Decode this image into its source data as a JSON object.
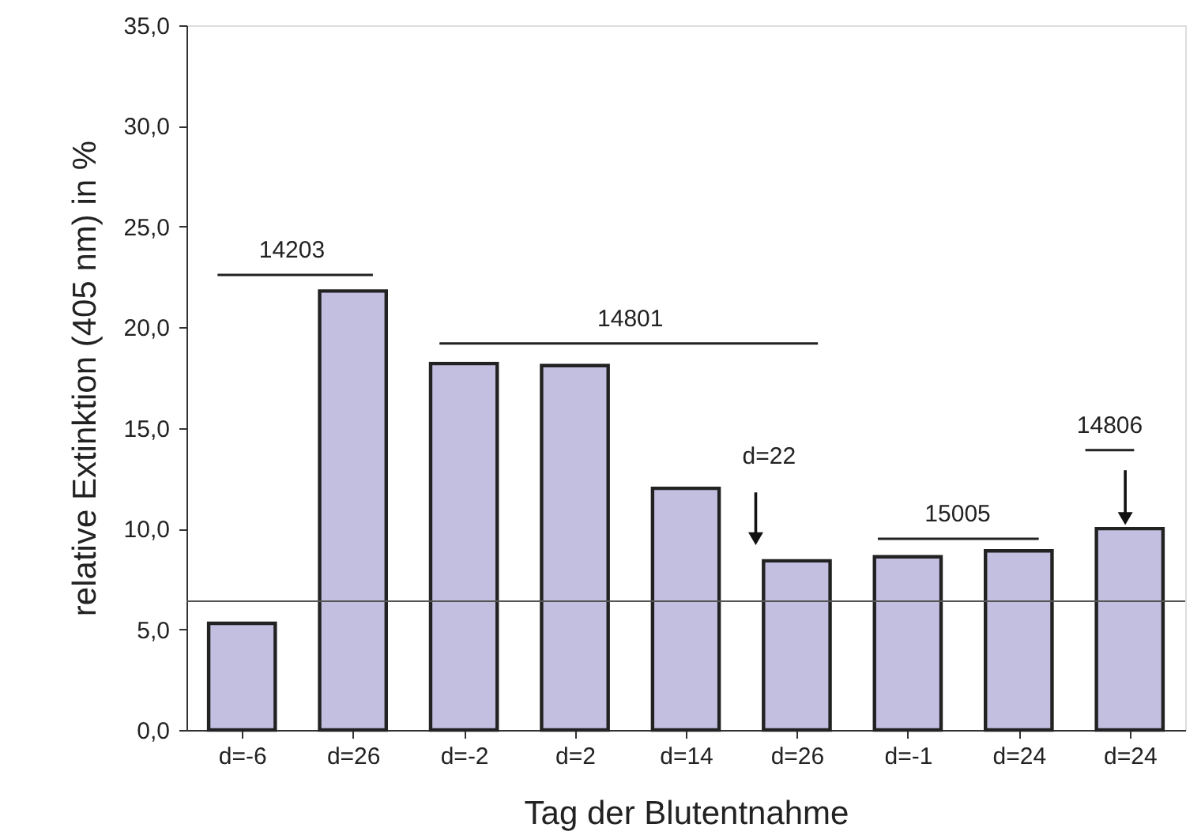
{
  "chart_data": {
    "type": "bar",
    "xlabel": "Tag der Blutentnahme",
    "ylabel": "relative Extinktion (405 nm) in %",
    "categories": [
      "d=-6",
      "d=26",
      "d=-2",
      "d=2",
      "d=14",
      "d=26",
      "d=-1",
      "d=24",
      "d=24"
    ],
    "values": [
      5.3,
      21.8,
      18.2,
      18.1,
      12.0,
      8.4,
      8.6,
      8.9,
      10.0
    ],
    "color": "#c3bfe0",
    "ylim": [
      0,
      35
    ],
    "yticks": [
      {
        "value": 0,
        "label": "0,0"
      },
      {
        "value": 5,
        "label": "5,0"
      },
      {
        "value": 10,
        "label": "10,0"
      },
      {
        "value": 15,
        "label": "15,0"
      },
      {
        "value": 20,
        "label": "20,0"
      },
      {
        "value": 25,
        "label": "25,0"
      },
      {
        "value": 30,
        "label": "30,0"
      },
      {
        "value": 35,
        "label": "35,0"
      }
    ],
    "grid": false,
    "ref_lines": [
      {
        "axis": "y",
        "value": 6.4,
        "color": "#555555"
      }
    ],
    "annotations": [
      "14203",
      "14801",
      "15005",
      "14806",
      "d=22"
    ]
  }
}
